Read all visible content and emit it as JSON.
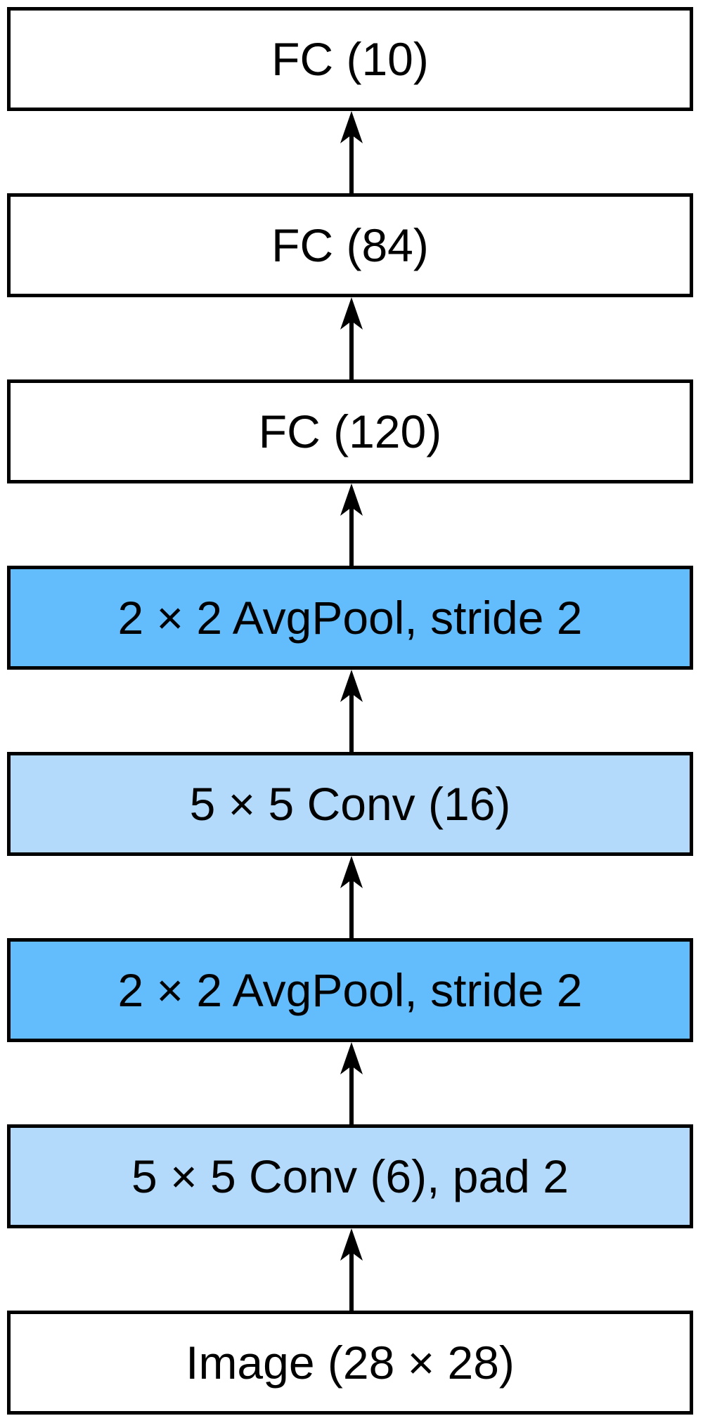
{
  "colors": {
    "fc": "#ffffff",
    "input": "#ffffff",
    "conv": "#b3d9fb",
    "pool": "#63bcfc",
    "stroke": "#000000"
  },
  "layers": [
    {
      "id": "fc-10",
      "label": "FC (10)",
      "kind": "fc"
    },
    {
      "id": "fc-84",
      "label": "FC (84)",
      "kind": "fc"
    },
    {
      "id": "fc-120",
      "label": "FC (120)",
      "kind": "fc"
    },
    {
      "id": "avgpool-2",
      "label": "2 × 2 AvgPool, stride 2",
      "kind": "pool"
    },
    {
      "id": "conv-16",
      "label": "5 × 5 Conv (16)",
      "kind": "conv"
    },
    {
      "id": "avgpool-1",
      "label": "2 × 2 AvgPool, stride 2",
      "kind": "pool"
    },
    {
      "id": "conv-6",
      "label": "5 × 5 Conv (6), pad 2",
      "kind": "conv"
    },
    {
      "id": "image-input",
      "label": "Image (28 × 28)",
      "kind": "input"
    }
  ]
}
